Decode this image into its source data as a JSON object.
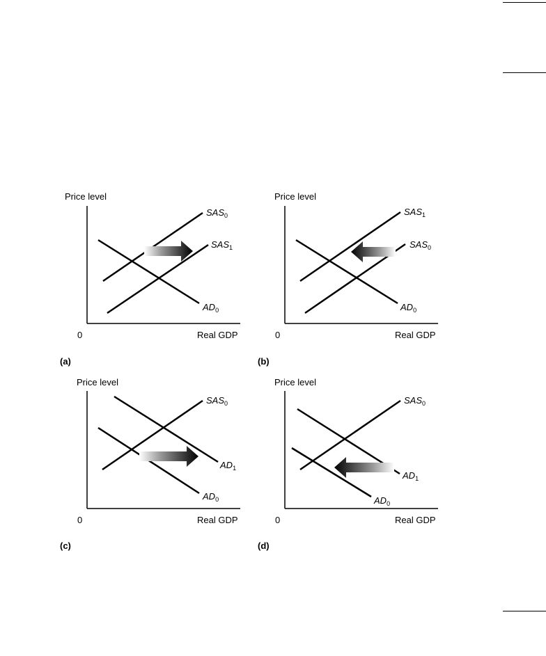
{
  "axes": {
    "y_label": "Price level",
    "x_label": "Real GDP",
    "origin": "0"
  },
  "panels": [
    {
      "id": "a",
      "tag": "(a)",
      "lines": [
        {
          "kind": "SAS",
          "sub": "0"
        },
        {
          "kind": "SAS",
          "sub": "1"
        },
        {
          "kind": "AD",
          "sub": "0"
        }
      ],
      "arrow": "right"
    },
    {
      "id": "b",
      "tag": "(b)",
      "lines": [
        {
          "kind": "SAS",
          "sub": "1"
        },
        {
          "kind": "SAS",
          "sub": "0"
        },
        {
          "kind": "AD",
          "sub": "0"
        }
      ],
      "arrow": "left"
    },
    {
      "id": "c",
      "tag": "(c)",
      "lines": [
        {
          "kind": "SAS",
          "sub": "0"
        },
        {
          "kind": "AD",
          "sub": "1"
        },
        {
          "kind": "AD",
          "sub": "0"
        }
      ],
      "arrow": "right"
    },
    {
      "id": "d",
      "tag": "(d)",
      "lines": [
        {
          "kind": "SAS",
          "sub": "0"
        },
        {
          "kind": "AD",
          "sub": "1"
        },
        {
          "kind": "AD",
          "sub": "0"
        }
      ],
      "arrow": "left"
    }
  ]
}
